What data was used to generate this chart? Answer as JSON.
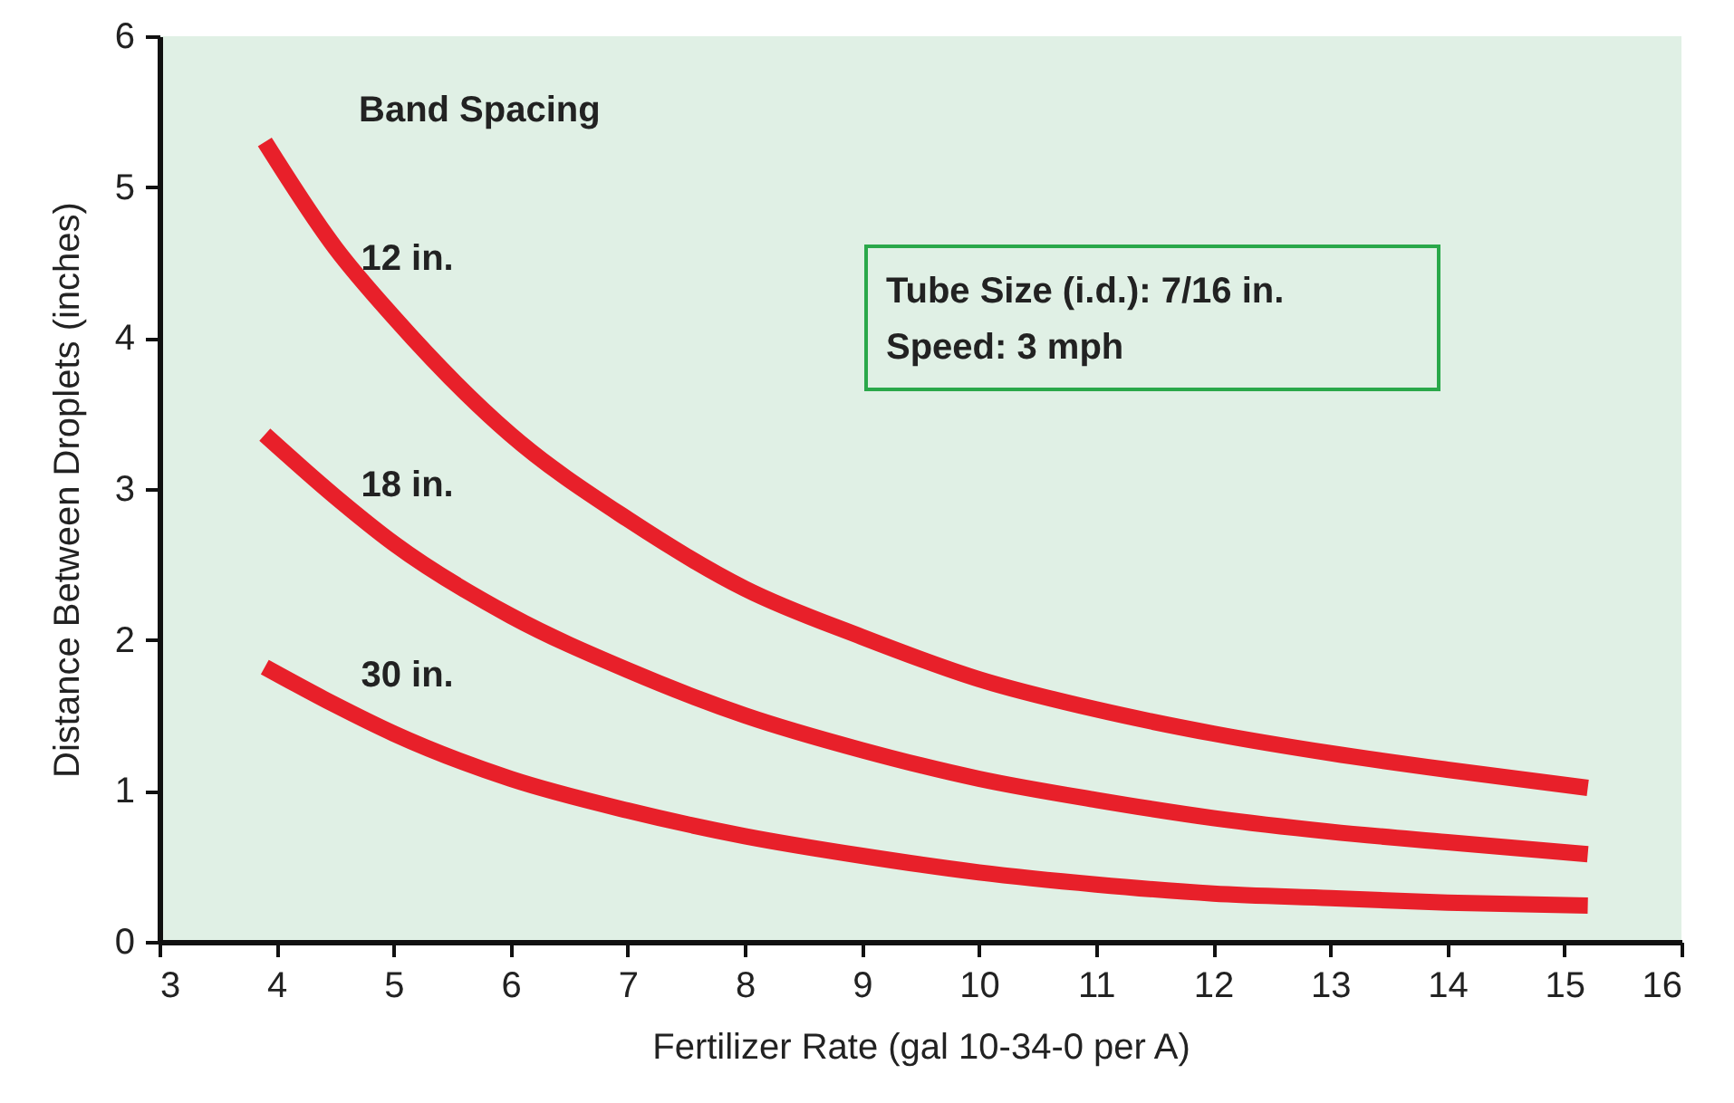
{
  "chart_data": {
    "type": "line",
    "xlabel": "Fertilizer Rate (gal 10-34-0 per A)",
    "ylabel": "Distance Between Droplets (inches)",
    "legend_title": "Band Spacing",
    "xlim": [
      3,
      16
    ],
    "ylim": [
      0,
      6
    ],
    "xticks": [
      3,
      4,
      5,
      6,
      7,
      8,
      9,
      10,
      11,
      12,
      13,
      14,
      15,
      16
    ],
    "yticks": [
      0,
      1,
      2,
      3,
      4,
      5,
      6
    ],
    "grid": false,
    "legend": "top left",
    "line_style": "solid",
    "marker": "none",
    "x": [
      3.9,
      4.5,
      5,
      6,
      7,
      8,
      9,
      10,
      11,
      12,
      13,
      14,
      15.2
    ],
    "series": [
      {
        "name": "12 in.",
        "color": "#e8202a",
        "values": [
          5.3,
          4.6,
          4.14,
          3.36,
          2.8,
          2.34,
          2.02,
          1.74,
          1.54,
          1.38,
          1.25,
          1.14,
          1.02
        ]
      },
      {
        "name": "18 in.",
        "color": "#e8202a",
        "values": [
          3.36,
          2.95,
          2.64,
          2.16,
          1.8,
          1.5,
          1.27,
          1.08,
          0.94,
          0.82,
          0.73,
          0.66,
          0.58
        ]
      },
      {
        "name": "30 in.",
        "color": "#e8202a",
        "values": [
          1.82,
          1.57,
          1.38,
          1.08,
          0.87,
          0.7,
          0.57,
          0.46,
          0.38,
          0.32,
          0.29,
          0.26,
          0.24
        ]
      }
    ],
    "annotations": [
      "Tube Size (i.d.): 7/16 in.",
      "Speed: 3 mph"
    ]
  }
}
